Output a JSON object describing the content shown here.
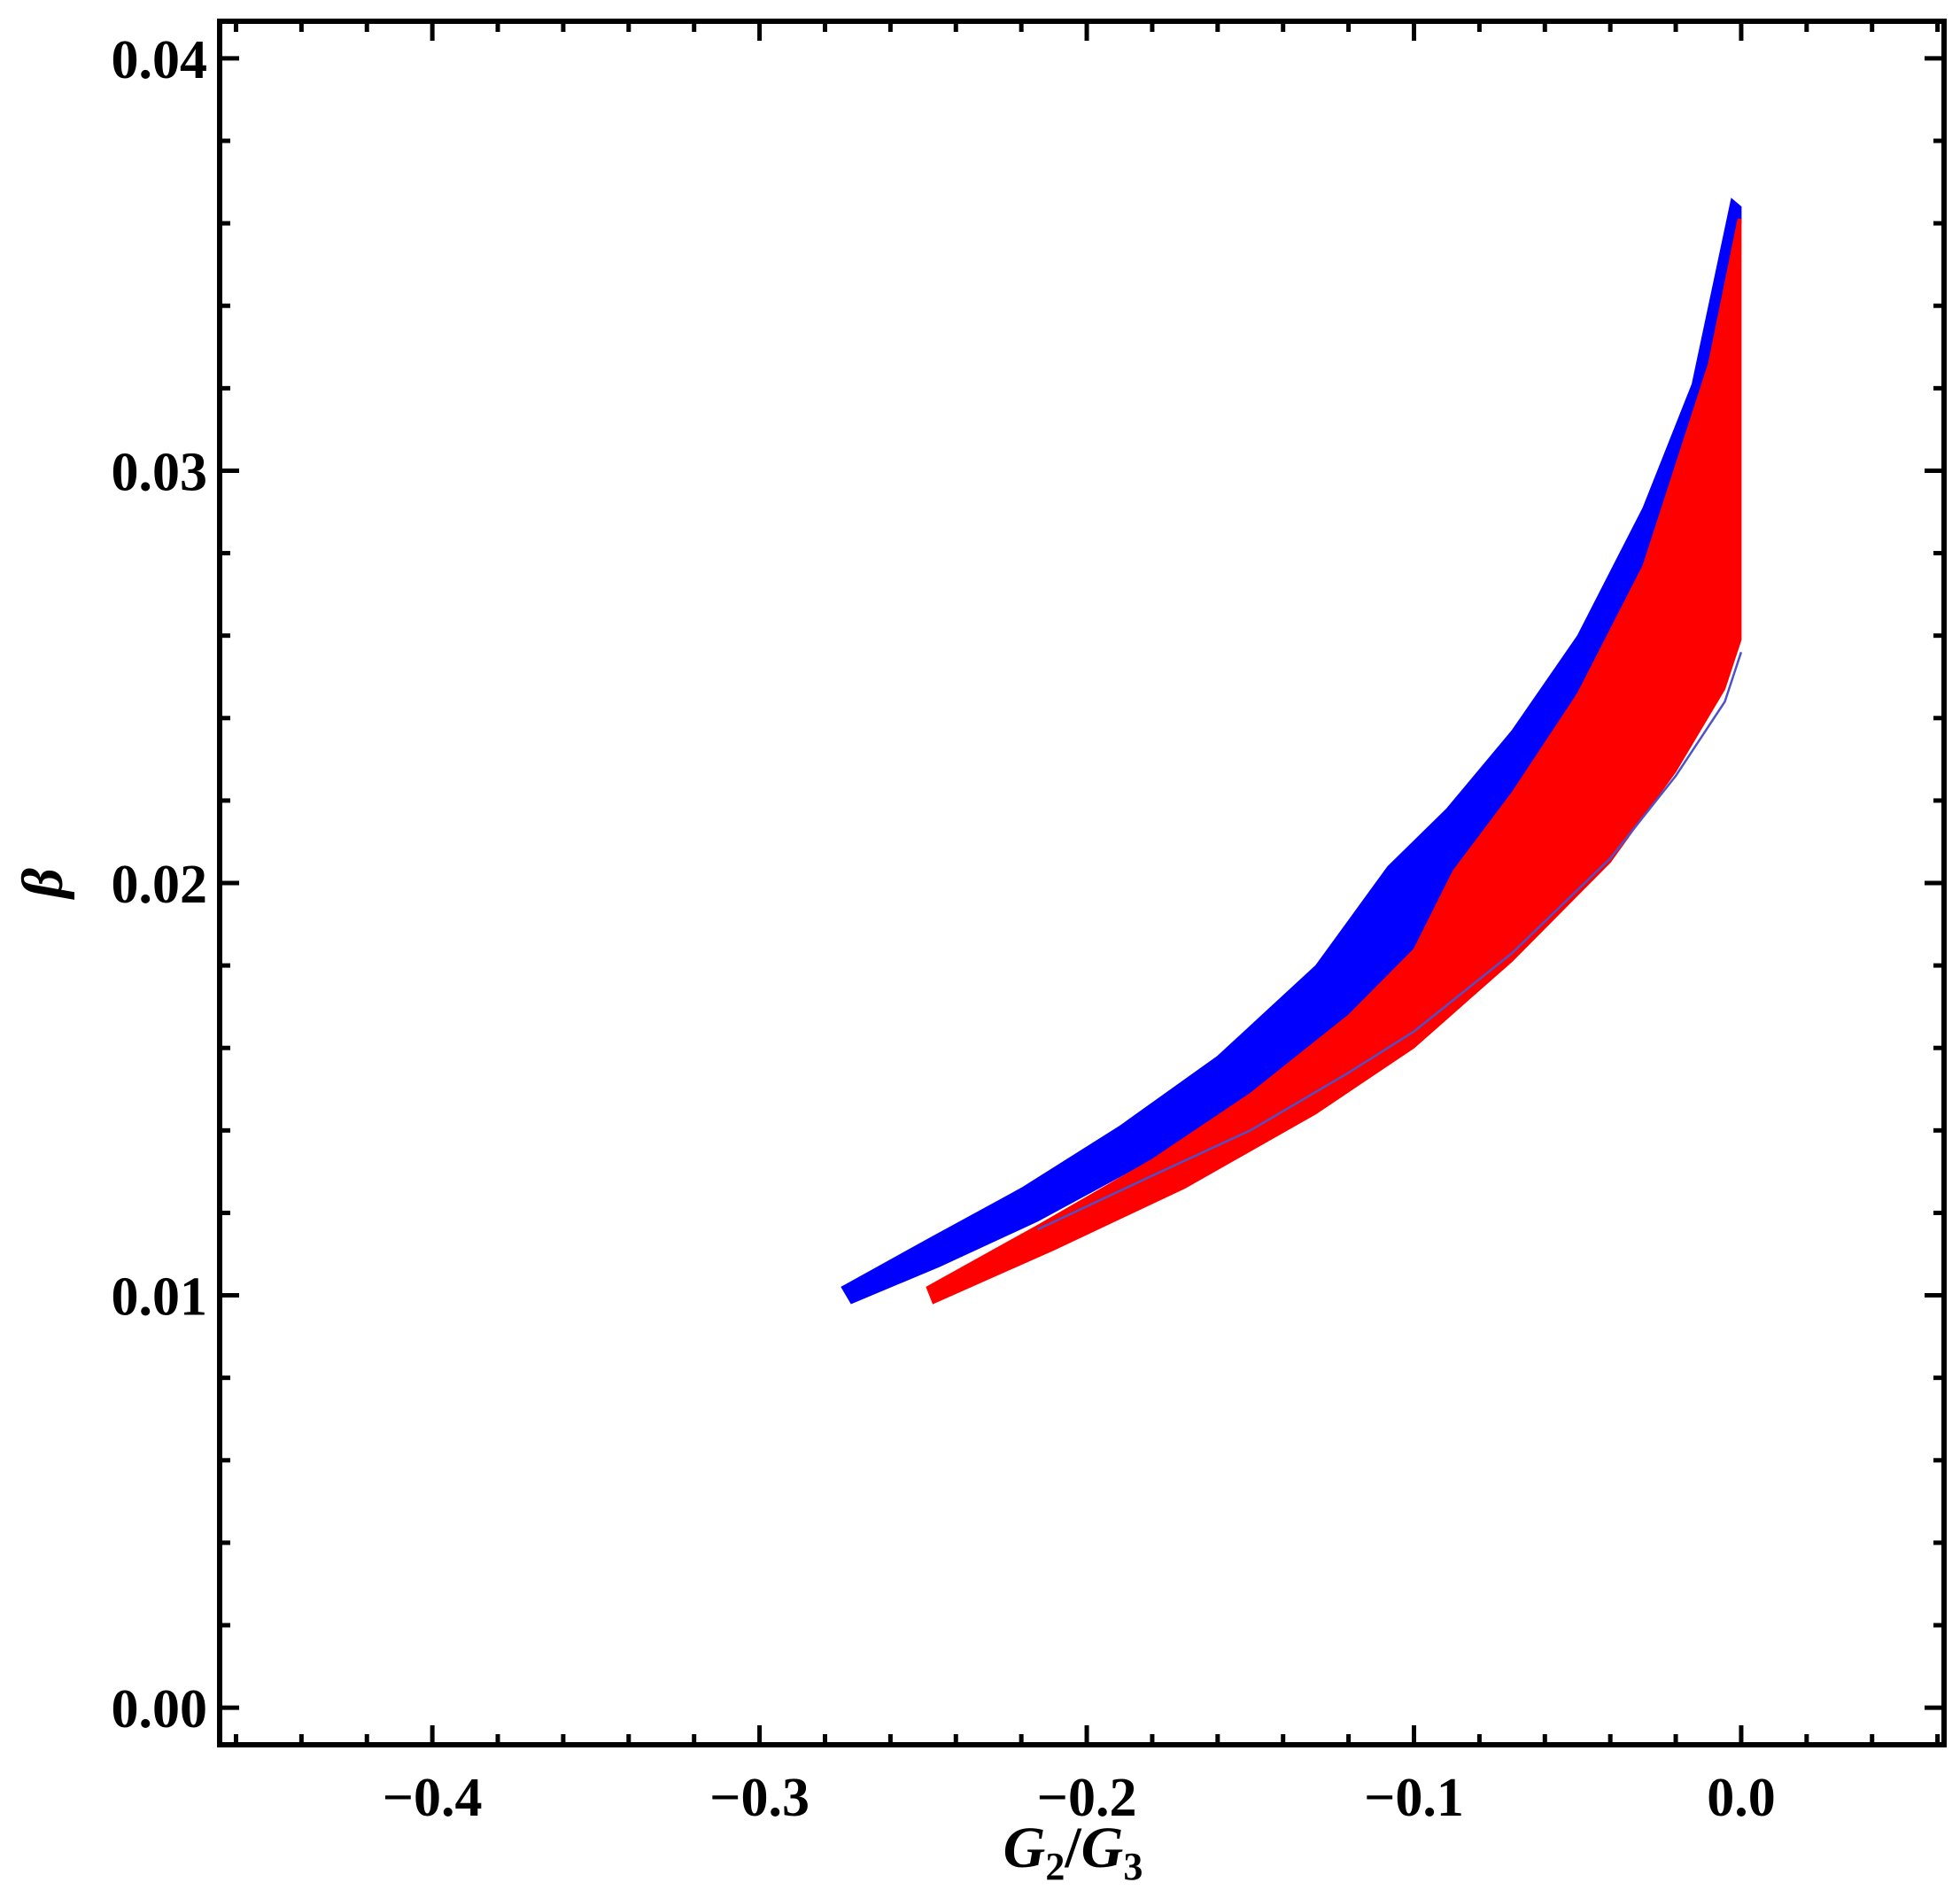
{
  "chart_data": {
    "type": "area",
    "title": "",
    "xlabel": {
      "base1": "G",
      "sub1": "2",
      "sep": "/",
      "base2": "G",
      "sub2": "3"
    },
    "ylabel": "β",
    "xlim": [
      -0.465,
      0.062
    ],
    "ylim": [
      -0.0009,
      0.0409
    ],
    "xticks": [
      -0.4,
      -0.3,
      -0.2,
      -0.1,
      0.0
    ],
    "xtick_labels": [
      "−0.4",
      "−0.3",
      "−0.2",
      "−0.1",
      "0.0"
    ],
    "yticks": [
      0.0,
      0.01,
      0.02,
      0.03,
      0.04
    ],
    "ytick_labels": [
      "0.00",
      "0.01",
      "0.02",
      "0.03",
      "0.04"
    ],
    "grid": false,
    "series": [
      {
        "color": "#0000ff",
        "upper": [
          [
            -0.275,
            0.0102
          ],
          [
            -0.25,
            0.0113
          ],
          [
            -0.22,
            0.0126
          ],
          [
            -0.19,
            0.0141
          ],
          [
            -0.16,
            0.0158
          ],
          [
            -0.13,
            0.018
          ],
          [
            -0.108,
            0.0204
          ],
          [
            -0.09,
            0.0218
          ],
          [
            -0.07,
            0.0237
          ],
          [
            -0.05,
            0.026
          ],
          [
            -0.03,
            0.0291
          ],
          [
            -0.015,
            0.0321
          ],
          [
            -0.003,
            0.0366
          ],
          [
            0.0,
            0.0364
          ]
        ],
        "lower": [
          [
            -0.272,
            0.0098
          ],
          [
            -0.245,
            0.0107
          ],
          [
            -0.215,
            0.0118
          ],
          [
            -0.18,
            0.0133
          ],
          [
            -0.15,
            0.0147
          ],
          [
            -0.12,
            0.0167
          ],
          [
            -0.1,
            0.0183
          ],
          [
            -0.088,
            0.0202
          ],
          [
            -0.07,
            0.0221
          ],
          [
            -0.05,
            0.0245
          ],
          [
            -0.03,
            0.0276
          ],
          [
            -0.01,
            0.0325
          ],
          [
            0.0,
            0.036
          ]
        ]
      },
      {
        "color": "#ff0000",
        "upper": [
          [
            -0.249,
            0.0102
          ],
          [
            -0.215,
            0.0117
          ],
          [
            -0.18,
            0.0133
          ],
          [
            -0.15,
            0.0149
          ],
          [
            -0.12,
            0.0168
          ],
          [
            -0.1,
            0.0184
          ],
          [
            -0.088,
            0.0203
          ],
          [
            -0.07,
            0.0222
          ],
          [
            -0.05,
            0.0246
          ],
          [
            -0.03,
            0.0277
          ],
          [
            -0.01,
            0.0326
          ],
          [
            -0.001,
            0.0361
          ],
          [
            0.0,
            0.0361
          ]
        ],
        "lower": [
          [
            -0.247,
            0.0098
          ],
          [
            -0.21,
            0.0111
          ],
          [
            -0.17,
            0.0126
          ],
          [
            -0.13,
            0.0144
          ],
          [
            -0.1,
            0.016
          ],
          [
            -0.07,
            0.0181
          ],
          [
            -0.04,
            0.0205
          ],
          [
            -0.02,
            0.0227
          ],
          [
            -0.005,
            0.0247
          ],
          [
            0.0,
            0.0259
          ]
        ]
      }
    ],
    "line": {
      "color": "#5050c8",
      "points": [
        [
          -0.215,
          0.0116
        ],
        [
          -0.18,
          0.0129
        ],
        [
          -0.15,
          0.014
        ],
        [
          -0.12,
          0.0154
        ],
        [
          -0.1,
          0.0164
        ],
        [
          -0.07,
          0.0183
        ],
        [
          -0.04,
          0.0206
        ],
        [
          -0.02,
          0.0226
        ],
        [
          -0.005,
          0.0244
        ],
        [
          0.0,
          0.0256
        ]
      ]
    }
  }
}
